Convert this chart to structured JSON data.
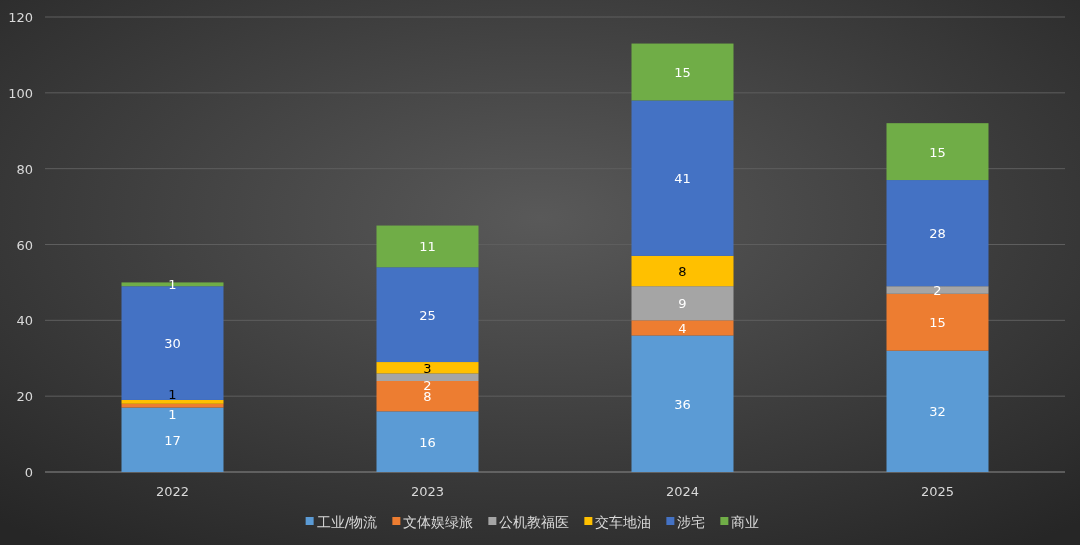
{
  "chart_data": {
    "type": "bar",
    "stacked": true,
    "data_labels": true,
    "grid": "y",
    "legend": "bottom",
    "categories": [
      "2022",
      "2023",
      "2024",
      "2025"
    ],
    "ylim": [
      0,
      120
    ],
    "yticks": [
      0,
      20,
      40,
      60,
      80,
      100,
      120
    ],
    "series": [
      {
        "name": "工业/物流",
        "color": "#5b9bd5",
        "values": [
          17,
          16,
          36,
          32
        ]
      },
      {
        "name": "文体娱绿旅",
        "color": "#ed7d31",
        "values": [
          1,
          8,
          4,
          15
        ]
      },
      {
        "name": "公机教福医",
        "color": "#a5a5a5",
        "values": [
          null,
          2,
          9,
          2
        ]
      },
      {
        "name": "交车地油",
        "color": "#ffc000",
        "values": [
          1,
          3,
          8,
          null
        ]
      },
      {
        "name": "涉宅",
        "color": "#4472c4",
        "values": [
          30,
          25,
          41,
          28
        ]
      },
      {
        "name": "商业",
        "color": "#70ad47",
        "values": [
          1,
          11,
          15,
          15
        ]
      }
    ]
  }
}
